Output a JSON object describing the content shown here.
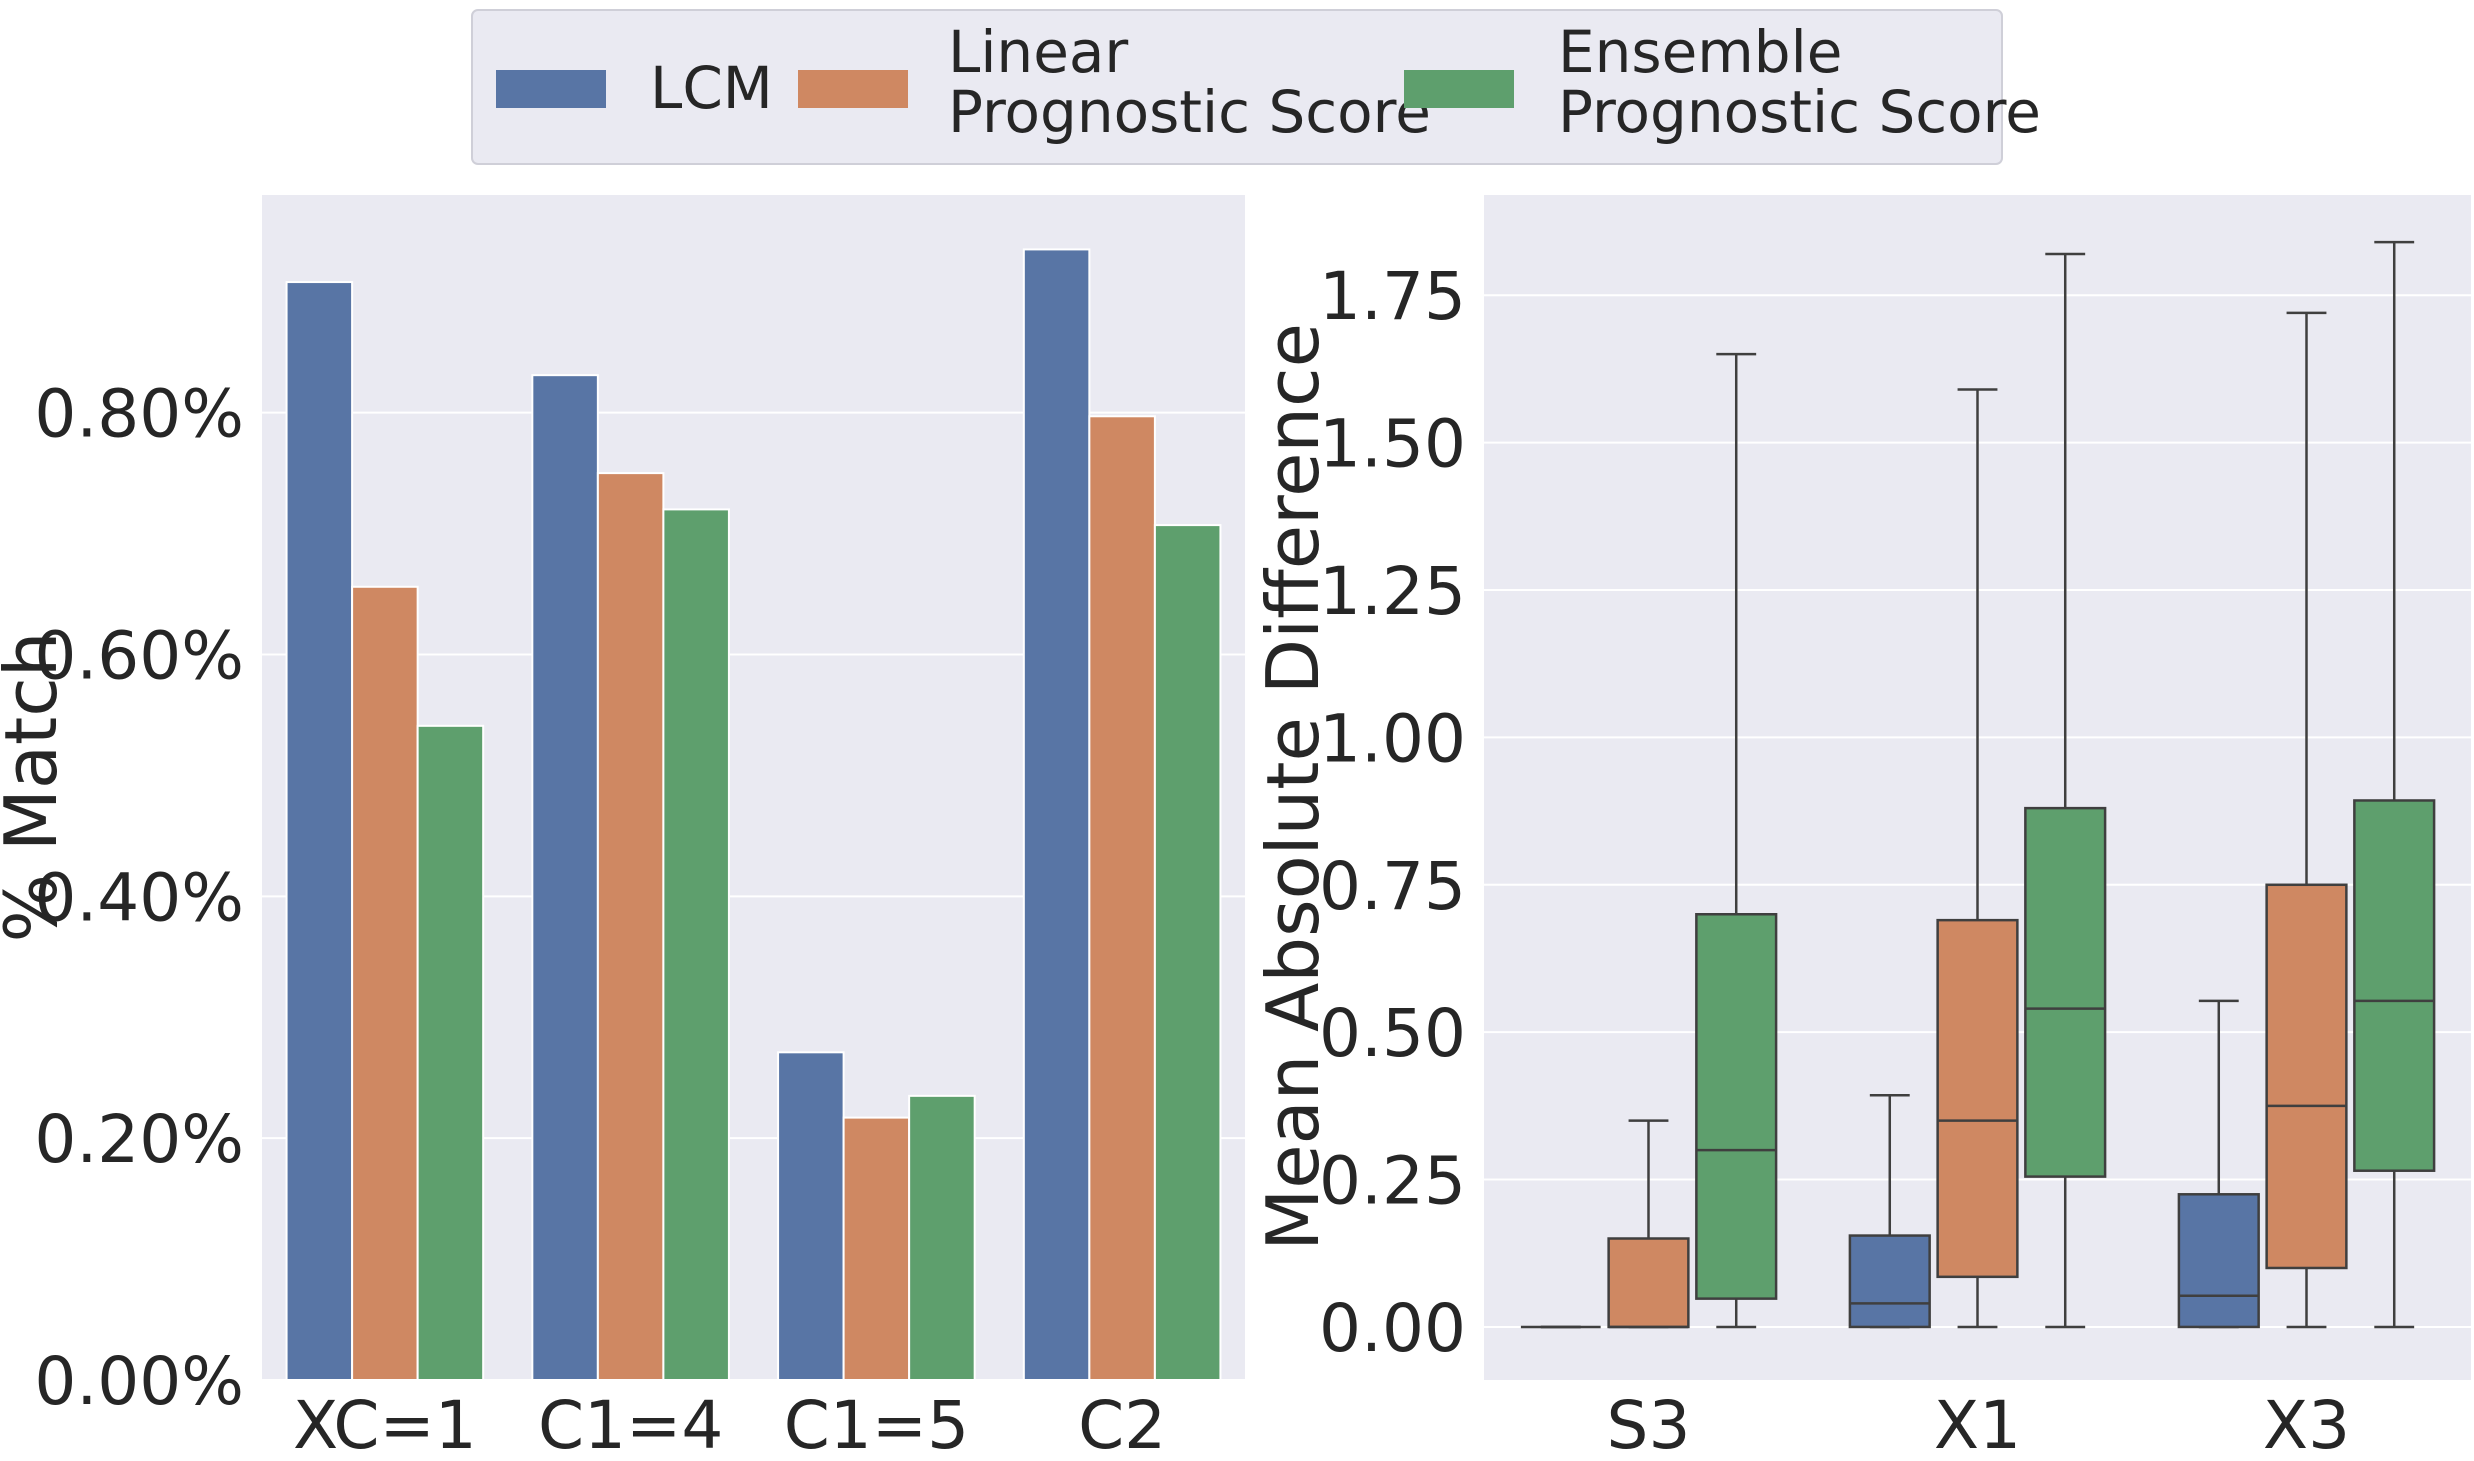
{
  "legend": {
    "entries": [
      {
        "name_lines": [
          "LCM"
        ],
        "color": "#5875a5"
      },
      {
        "name_lines": [
          "Linear",
          "Prognostic Score"
        ],
        "color": "#cf8862"
      },
      {
        "name_lines": [
          "Ensemble",
          "Prognostic Score"
        ],
        "color": "#5e9f6d"
      }
    ],
    "placement": "top-center"
  },
  "chart_data": [
    {
      "type": "bar",
      "ylabel": "% Match",
      "categories": [
        "XC=1",
        "C1=4",
        "C1=5",
        "C2"
      ],
      "ylim": [
        0,
        0.98
      ],
      "yticks": [
        0,
        0.2,
        0.4,
        0.6,
        0.8
      ],
      "ytick_labels": [
        "0.00%",
        "0.20%",
        "0.40%",
        "0.60%",
        "0.80%"
      ],
      "grid": true,
      "series": [
        {
          "name": "LCM",
          "color": "#5875a5",
          "values": [
            0.908,
            0.831,
            0.271,
            0.935
          ]
        },
        {
          "name": "Linear Prognostic Score",
          "color": "#cf8862",
          "values": [
            0.656,
            0.75,
            0.217,
            0.797
          ]
        },
        {
          "name": "Ensemble Prognostic Score",
          "color": "#5e9f6d",
          "values": [
            0.541,
            0.72,
            0.235,
            0.707
          ]
        }
      ]
    },
    {
      "type": "box",
      "ylabel": "Mean Absolute Difference",
      "categories": [
        "S3",
        "X1",
        "X3"
      ],
      "ylim": [
        -0.09,
        1.92
      ],
      "yticks": [
        0,
        0.25,
        0.5,
        0.75,
        1.0,
        1.25,
        1.5,
        1.75
      ],
      "ytick_labels": [
        "0.00",
        "0.25",
        "0.50",
        "0.75",
        "1.00",
        "1.25",
        "1.50",
        "1.75"
      ],
      "grid": true,
      "series": [
        {
          "name": "LCM",
          "color": "#5875a5",
          "boxes": [
            {
              "whislo": 0,
              "q1": 0,
              "med": 0,
              "q3": 0,
              "whishi": 0
            },
            {
              "whislo": 0,
              "q1": 0,
              "med": 0.04,
              "q3": 0.155,
              "whishi": 0.393
            },
            {
              "whislo": 0,
              "q1": 0,
              "med": 0.053,
              "q3": 0.225,
              "whishi": 0.553
            }
          ]
        },
        {
          "name": "Linear Prognostic Score",
          "color": "#cf8862",
          "boxes": [
            {
              "whislo": 0,
              "q1": 0,
              "med": 0,
              "q3": 0.15,
              "whishi": 0.35
            },
            {
              "whislo": 0,
              "q1": 0.085,
              "med": 0.35,
              "q3": 0.69,
              "whishi": 1.59
            },
            {
              "whislo": 0,
              "q1": 0.1,
              "med": 0.375,
              "q3": 0.75,
              "whishi": 1.72
            }
          ]
        },
        {
          "name": "Ensemble Prognostic Score",
          "color": "#5e9f6d",
          "boxes": [
            {
              "whislo": 0,
              "q1": 0.048,
              "med": 0.3,
              "q3": 0.7,
              "whishi": 1.65
            },
            {
              "whislo": 0,
              "q1": 0.255,
              "med": 0.54,
              "q3": 0.88,
              "whishi": 1.82
            },
            {
              "whislo": 0,
              "q1": 0.265,
              "med": 0.553,
              "q3": 0.893,
              "whishi": 1.84
            }
          ]
        }
      ]
    }
  ]
}
